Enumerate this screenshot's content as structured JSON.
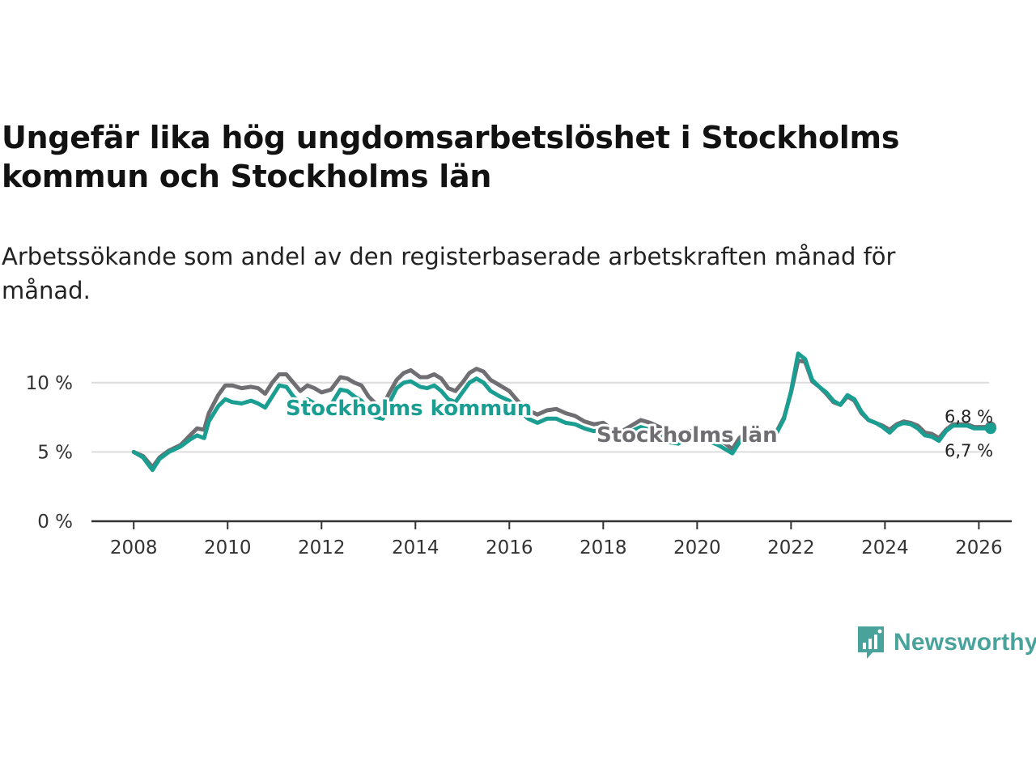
{
  "title": "Ungefär lika hög ungdomsarbetslöshet i Stockholms kommun och Stockholms län",
  "subtitle": "Arbetssökande som andel av den registerbaserade arbetskraften månad för månad.",
  "brand": {
    "name": "Newsworthy",
    "color": "#4aa39a"
  },
  "chart_data": {
    "type": "line",
    "title": "Ungefär lika hög ungdomsarbetslöshet i Stockholms kommun och Stockholms län",
    "xlabel": "",
    "ylabel": "",
    "xlim": [
      2007.1,
      2026.7
    ],
    "ylim": [
      0,
      12.5
    ],
    "x_ticks": [
      2008,
      2010,
      2012,
      2014,
      2016,
      2018,
      2020,
      2022,
      2024,
      2026
    ],
    "x_tick_labels": [
      "2008",
      "2010",
      "2012",
      "2014",
      "2016",
      "2018",
      "2020",
      "2022",
      "2024",
      "2026"
    ],
    "y_ticks": [
      0,
      5,
      10
    ],
    "y_tick_labels": [
      "0 %",
      "5 %",
      "10 %"
    ],
    "grid": true,
    "series": [
      {
        "name": "Stockholms län",
        "color": "#6e6e73",
        "end_label": "6,8 %",
        "points": [
          [
            2008.0,
            5.0
          ],
          [
            2008.2,
            4.7
          ],
          [
            2008.4,
            3.9
          ],
          [
            2008.55,
            4.6
          ],
          [
            2008.75,
            5.1
          ],
          [
            2009.0,
            5.5
          ],
          [
            2009.2,
            6.2
          ],
          [
            2009.35,
            6.7
          ],
          [
            2009.5,
            6.6
          ],
          [
            2009.6,
            7.8
          ],
          [
            2009.8,
            9.1
          ],
          [
            2009.95,
            9.8
          ],
          [
            2010.1,
            9.8
          ],
          [
            2010.3,
            9.6
          ],
          [
            2010.5,
            9.7
          ],
          [
            2010.65,
            9.6
          ],
          [
            2010.8,
            9.2
          ],
          [
            2010.95,
            10.0
          ],
          [
            2011.1,
            10.6
          ],
          [
            2011.25,
            10.6
          ],
          [
            2011.4,
            10.0
          ],
          [
            2011.55,
            9.4
          ],
          [
            2011.7,
            9.8
          ],
          [
            2011.85,
            9.6
          ],
          [
            2012.0,
            9.3
          ],
          [
            2012.2,
            9.5
          ],
          [
            2012.4,
            10.4
          ],
          [
            2012.55,
            10.3
          ],
          [
            2012.7,
            10.0
          ],
          [
            2012.85,
            9.8
          ],
          [
            2013.0,
            9.0
          ],
          [
            2013.15,
            8.5
          ],
          [
            2013.3,
            8.3
          ],
          [
            2013.45,
            9.3
          ],
          [
            2013.6,
            10.2
          ],
          [
            2013.75,
            10.7
          ],
          [
            2013.9,
            10.9
          ],
          [
            2014.1,
            10.4
          ],
          [
            2014.25,
            10.4
          ],
          [
            2014.4,
            10.6
          ],
          [
            2014.55,
            10.3
          ],
          [
            2014.7,
            9.6
          ],
          [
            2014.85,
            9.4
          ],
          [
            2015.0,
            10.0
          ],
          [
            2015.15,
            10.7
          ],
          [
            2015.3,
            11.0
          ],
          [
            2015.45,
            10.8
          ],
          [
            2015.6,
            10.2
          ],
          [
            2015.8,
            9.8
          ],
          [
            2016.0,
            9.4
          ],
          [
            2016.2,
            8.6
          ],
          [
            2016.4,
            8.0
          ],
          [
            2016.6,
            7.7
          ],
          [
            2016.8,
            8.0
          ],
          [
            2017.0,
            8.1
          ],
          [
            2017.2,
            7.8
          ],
          [
            2017.4,
            7.6
          ],
          [
            2017.6,
            7.2
          ],
          [
            2017.8,
            7.0
          ],
          [
            2018.0,
            7.1
          ],
          [
            2018.2,
            6.6
          ],
          [
            2018.4,
            6.5
          ],
          [
            2018.6,
            6.9
          ],
          [
            2018.8,
            7.3
          ],
          [
            2019.0,
            7.1
          ],
          [
            2019.2,
            6.8
          ],
          [
            2019.4,
            6.2
          ],
          [
            2019.6,
            6.0
          ],
          [
            2019.8,
            6.5
          ],
          [
            2020.0,
            6.5
          ],
          [
            2020.15,
            6.3
          ],
          [
            2020.3,
            6.1
          ],
          [
            2020.45,
            5.9
          ],
          [
            2020.6,
            5.6
          ],
          [
            2020.75,
            5.2
          ],
          [
            2020.9,
            6.0
          ],
          [
            2021.1,
            6.5
          ],
          [
            2021.25,
            6.6
          ],
          [
            2021.4,
            6.1
          ],
          [
            2021.55,
            6.1
          ],
          [
            2021.7,
            6.5
          ],
          [
            2021.85,
            7.5
          ],
          [
            2022.0,
            9.3
          ],
          [
            2022.15,
            11.6
          ],
          [
            2022.3,
            11.5
          ],
          [
            2022.45,
            10.1
          ],
          [
            2022.6,
            9.7
          ],
          [
            2022.75,
            9.2
          ],
          [
            2022.9,
            8.6
          ],
          [
            2023.05,
            8.4
          ],
          [
            2023.2,
            9.0
          ],
          [
            2023.35,
            8.7
          ],
          [
            2023.5,
            7.8
          ],
          [
            2023.65,
            7.3
          ],
          [
            2023.8,
            7.1
          ],
          [
            2023.95,
            6.9
          ],
          [
            2024.1,
            6.6
          ],
          [
            2024.25,
            7.0
          ],
          [
            2024.4,
            7.2
          ],
          [
            2024.55,
            7.1
          ],
          [
            2024.7,
            6.9
          ],
          [
            2024.85,
            6.4
          ],
          [
            2025.0,
            6.3
          ],
          [
            2025.15,
            6.0
          ],
          [
            2025.3,
            6.6
          ],
          [
            2025.45,
            7.0
          ],
          [
            2025.6,
            7.0
          ],
          [
            2025.75,
            7.0
          ],
          [
            2025.9,
            6.8
          ],
          [
            2026.05,
            6.8
          ],
          [
            2026.25,
            6.8
          ]
        ]
      },
      {
        "name": "Stockholms kommun",
        "color": "#1a9e92",
        "end_label": "6,7 %",
        "points": [
          [
            2008.0,
            5.0
          ],
          [
            2008.2,
            4.6
          ],
          [
            2008.4,
            3.7
          ],
          [
            2008.55,
            4.5
          ],
          [
            2008.75,
            5.0
          ],
          [
            2009.0,
            5.4
          ],
          [
            2009.2,
            5.9
          ],
          [
            2009.35,
            6.2
          ],
          [
            2009.5,
            6.0
          ],
          [
            2009.6,
            7.2
          ],
          [
            2009.8,
            8.3
          ],
          [
            2009.95,
            8.8
          ],
          [
            2010.1,
            8.6
          ],
          [
            2010.3,
            8.5
          ],
          [
            2010.5,
            8.7
          ],
          [
            2010.65,
            8.5
          ],
          [
            2010.8,
            8.2
          ],
          [
            2010.95,
            9.0
          ],
          [
            2011.1,
            9.8
          ],
          [
            2011.25,
            9.7
          ],
          [
            2011.4,
            9.0
          ],
          [
            2011.55,
            8.5
          ],
          [
            2011.7,
            8.8
          ],
          [
            2011.85,
            8.5
          ],
          [
            2012.0,
            8.1
          ],
          [
            2012.2,
            8.4
          ],
          [
            2012.4,
            9.5
          ],
          [
            2012.55,
            9.4
          ],
          [
            2012.7,
            9.0
          ],
          [
            2012.85,
            8.7
          ],
          [
            2013.0,
            7.9
          ],
          [
            2013.15,
            7.5
          ],
          [
            2013.3,
            7.4
          ],
          [
            2013.45,
            8.6
          ],
          [
            2013.6,
            9.6
          ],
          [
            2013.75,
            10.0
          ],
          [
            2013.9,
            10.1
          ],
          [
            2014.1,
            9.7
          ],
          [
            2014.25,
            9.6
          ],
          [
            2014.4,
            9.8
          ],
          [
            2014.55,
            9.4
          ],
          [
            2014.7,
            8.8
          ],
          [
            2014.85,
            8.6
          ],
          [
            2015.0,
            9.3
          ],
          [
            2015.15,
            10.0
          ],
          [
            2015.3,
            10.3
          ],
          [
            2015.45,
            10.0
          ],
          [
            2015.6,
            9.4
          ],
          [
            2015.8,
            9.0
          ],
          [
            2016.0,
            8.7
          ],
          [
            2016.2,
            8.0
          ],
          [
            2016.4,
            7.4
          ],
          [
            2016.6,
            7.1
          ],
          [
            2016.8,
            7.4
          ],
          [
            2017.0,
            7.4
          ],
          [
            2017.2,
            7.1
          ],
          [
            2017.4,
            7.0
          ],
          [
            2017.6,
            6.7
          ],
          [
            2017.8,
            6.5
          ],
          [
            2018.0,
            6.6
          ],
          [
            2018.2,
            6.1
          ],
          [
            2018.4,
            6.0
          ],
          [
            2018.6,
            6.5
          ],
          [
            2018.8,
            6.8
          ],
          [
            2019.0,
            6.6
          ],
          [
            2019.2,
            6.3
          ],
          [
            2019.4,
            5.7
          ],
          [
            2019.6,
            5.6
          ],
          [
            2019.8,
            6.1
          ],
          [
            2020.0,
            6.1
          ],
          [
            2020.15,
            5.9
          ],
          [
            2020.3,
            5.7
          ],
          [
            2020.45,
            5.5
          ],
          [
            2020.6,
            5.2
          ],
          [
            2020.75,
            4.9
          ],
          [
            2020.9,
            5.7
          ],
          [
            2021.1,
            6.3
          ],
          [
            2021.25,
            6.5
          ],
          [
            2021.4,
            6.0
          ],
          [
            2021.55,
            6.0
          ],
          [
            2021.7,
            6.4
          ],
          [
            2021.85,
            7.4
          ],
          [
            2022.0,
            9.4
          ],
          [
            2022.15,
            12.1
          ],
          [
            2022.3,
            11.7
          ],
          [
            2022.45,
            10.2
          ],
          [
            2022.6,
            9.7
          ],
          [
            2022.75,
            9.3
          ],
          [
            2022.9,
            8.7
          ],
          [
            2023.05,
            8.4
          ],
          [
            2023.2,
            9.1
          ],
          [
            2023.35,
            8.8
          ],
          [
            2023.5,
            7.9
          ],
          [
            2023.65,
            7.3
          ],
          [
            2023.8,
            7.1
          ],
          [
            2023.95,
            6.8
          ],
          [
            2024.1,
            6.4
          ],
          [
            2024.25,
            6.9
          ],
          [
            2024.4,
            7.1
          ],
          [
            2024.55,
            7.0
          ],
          [
            2024.7,
            6.7
          ],
          [
            2024.85,
            6.2
          ],
          [
            2025.0,
            6.1
          ],
          [
            2025.15,
            5.8
          ],
          [
            2025.3,
            6.5
          ],
          [
            2025.45,
            6.9
          ],
          [
            2025.6,
            6.9
          ],
          [
            2025.75,
            6.9
          ],
          [
            2025.9,
            6.7
          ],
          [
            2026.05,
            6.7
          ],
          [
            2026.25,
            6.7
          ]
        ]
      }
    ]
  }
}
